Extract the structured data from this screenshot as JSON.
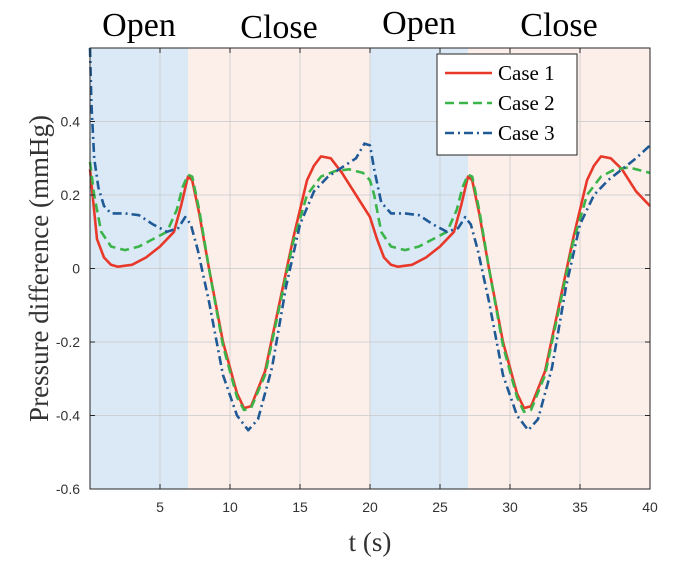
{
  "chart_data": {
    "type": "line",
    "xlabel": "t (s)",
    "ylabel": "Pressure difference (mmHg)",
    "xlim": [
      0,
      40
    ],
    "ylim": [
      -0.6,
      0.6
    ],
    "xticks": [
      5,
      10,
      15,
      20,
      25,
      30,
      35,
      40
    ],
    "yticks": [
      -0.6,
      -0.4,
      -0.2,
      0,
      0.2,
      0.4
    ],
    "grid": true,
    "legend_position": "top-right",
    "phases": [
      {
        "label": "Open",
        "start": 0,
        "end": 7,
        "color": "#dbe9f7"
      },
      {
        "label": "Close",
        "start": 7,
        "end": 20,
        "color": "#fcefea"
      },
      {
        "label": "Open",
        "start": 20,
        "end": 27,
        "color": "#dbe9f7"
      },
      {
        "label": "Close",
        "start": 27,
        "end": 40,
        "color": "#fcefea"
      }
    ],
    "series": [
      {
        "name": "Case 1",
        "color": "#e8382a",
        "dash": "solid",
        "points": [
          [
            0,
            0.27
          ],
          [
            0.5,
            0.08
          ],
          [
            1,
            0.03
          ],
          [
            1.5,
            0.01
          ],
          [
            2,
            0.005
          ],
          [
            3,
            0.01
          ],
          [
            4,
            0.03
          ],
          [
            5,
            0.06
          ],
          [
            6,
            0.1
          ],
          [
            6.5,
            0.17
          ],
          [
            7,
            0.25
          ],
          [
            7.3,
            0.24
          ],
          [
            7.8,
            0.15
          ],
          [
            8.5,
            0
          ],
          [
            9.5,
            -0.2
          ],
          [
            10.5,
            -0.34
          ],
          [
            11,
            -0.38
          ],
          [
            11.5,
            -0.375
          ],
          [
            12.5,
            -0.28
          ],
          [
            13.5,
            -0.1
          ],
          [
            14.5,
            0.08
          ],
          [
            15.5,
            0.24
          ],
          [
            16,
            0.28
          ],
          [
            16.5,
            0.305
          ],
          [
            17.2,
            0.3
          ],
          [
            18,
            0.26
          ],
          [
            19,
            0.2
          ],
          [
            20,
            0.14
          ],
          [
            20.5,
            0.08
          ],
          [
            21,
            0.03
          ],
          [
            21.5,
            0.01
          ],
          [
            22,
            0.005
          ],
          [
            23,
            0.01
          ],
          [
            24,
            0.03
          ],
          [
            25,
            0.06
          ],
          [
            26,
            0.1
          ],
          [
            26.5,
            0.17
          ],
          [
            27,
            0.25
          ],
          [
            27.3,
            0.24
          ],
          [
            27.8,
            0.15
          ],
          [
            28.5,
            0
          ],
          [
            29.5,
            -0.2
          ],
          [
            30.5,
            -0.34
          ],
          [
            31,
            -0.38
          ],
          [
            31.5,
            -0.375
          ],
          [
            32.5,
            -0.28
          ],
          [
            33.5,
            -0.1
          ],
          [
            34.5,
            0.08
          ],
          [
            35.5,
            0.24
          ],
          [
            36,
            0.28
          ],
          [
            36.5,
            0.305
          ],
          [
            37.2,
            0.3
          ],
          [
            38,
            0.27
          ],
          [
            39,
            0.21
          ],
          [
            40,
            0.17
          ]
        ]
      },
      {
        "name": "Case 2",
        "color": "#3bb44a",
        "dash": "dashed",
        "points": [
          [
            0,
            0.29
          ],
          [
            0.3,
            0.2
          ],
          [
            0.8,
            0.1
          ],
          [
            1.5,
            0.06
          ],
          [
            2.5,
            0.05
          ],
          [
            3.5,
            0.06
          ],
          [
            4.5,
            0.08
          ],
          [
            5.5,
            0.1
          ],
          [
            6.2,
            0.16
          ],
          [
            6.6,
            0.22
          ],
          [
            7,
            0.255
          ],
          [
            7.3,
            0.25
          ],
          [
            7.8,
            0.16
          ],
          [
            8.5,
            0
          ],
          [
            9.5,
            -0.21
          ],
          [
            10.5,
            -0.35
          ],
          [
            11,
            -0.385
          ],
          [
            11.5,
            -0.38
          ],
          [
            12.5,
            -0.29
          ],
          [
            13.5,
            -0.11
          ],
          [
            14.5,
            0.07
          ],
          [
            15.5,
            0.2
          ],
          [
            16.5,
            0.25
          ],
          [
            17.5,
            0.265
          ],
          [
            18.5,
            0.27
          ],
          [
            19.5,
            0.26
          ],
          [
            20,
            0.24
          ],
          [
            20.3,
            0.2
          ],
          [
            20.8,
            0.1
          ],
          [
            21.5,
            0.06
          ],
          [
            22.5,
            0.05
          ],
          [
            23.5,
            0.06
          ],
          [
            24.5,
            0.08
          ],
          [
            25.5,
            0.1
          ],
          [
            26.2,
            0.16
          ],
          [
            26.6,
            0.22
          ],
          [
            27,
            0.255
          ],
          [
            27.3,
            0.25
          ],
          [
            27.8,
            0.16
          ],
          [
            28.5,
            0
          ],
          [
            29.5,
            -0.21
          ],
          [
            30.5,
            -0.35
          ],
          [
            31,
            -0.39
          ],
          [
            31.5,
            -0.385
          ],
          [
            32.5,
            -0.29
          ],
          [
            33.5,
            -0.11
          ],
          [
            34.5,
            0.07
          ],
          [
            35.5,
            0.2
          ],
          [
            36.5,
            0.25
          ],
          [
            37.5,
            0.27
          ],
          [
            38.5,
            0.275
          ],
          [
            39.5,
            0.265
          ],
          [
            40,
            0.26
          ]
        ]
      },
      {
        "name": "Case 3",
        "color": "#1f5a96",
        "dash": "dashdot",
        "points": [
          [
            0,
            0.6
          ],
          [
            0.1,
            0.45
          ],
          [
            0.3,
            0.3
          ],
          [
            0.6,
            0.22
          ],
          [
            1,
            0.17
          ],
          [
            1.5,
            0.15
          ],
          [
            2.5,
            0.15
          ],
          [
            3.5,
            0.145
          ],
          [
            4.5,
            0.12
          ],
          [
            5.5,
            0.1
          ],
          [
            6.3,
            0.11
          ],
          [
            6.8,
            0.14
          ],
          [
            7.2,
            0.12
          ],
          [
            7.7,
            0.05
          ],
          [
            8.5,
            -0.09
          ],
          [
            9.5,
            -0.29
          ],
          [
            10.5,
            -0.4
          ],
          [
            11.3,
            -0.44
          ],
          [
            12,
            -0.41
          ],
          [
            13,
            -0.27
          ],
          [
            14,
            -0.05
          ],
          [
            15,
            0.12
          ],
          [
            16,
            0.21
          ],
          [
            17,
            0.25
          ],
          [
            18,
            0.275
          ],
          [
            19,
            0.3
          ],
          [
            19.6,
            0.34
          ],
          [
            20,
            0.335
          ],
          [
            20.3,
            0.27
          ],
          [
            20.8,
            0.18
          ],
          [
            21.5,
            0.15
          ],
          [
            22.5,
            0.15
          ],
          [
            23.5,
            0.145
          ],
          [
            24.5,
            0.12
          ],
          [
            25.5,
            0.1
          ],
          [
            26.3,
            0.11
          ],
          [
            26.8,
            0.14
          ],
          [
            27.2,
            0.12
          ],
          [
            27.7,
            0.05
          ],
          [
            28.5,
            -0.09
          ],
          [
            29.5,
            -0.29
          ],
          [
            30.5,
            -0.4
          ],
          [
            31.3,
            -0.44
          ],
          [
            32,
            -0.41
          ],
          [
            33,
            -0.27
          ],
          [
            34,
            -0.05
          ],
          [
            35,
            0.12
          ],
          [
            36,
            0.2
          ],
          [
            37,
            0.24
          ],
          [
            38,
            0.27
          ],
          [
            39,
            0.3
          ],
          [
            40,
            0.335
          ]
        ]
      }
    ]
  }
}
